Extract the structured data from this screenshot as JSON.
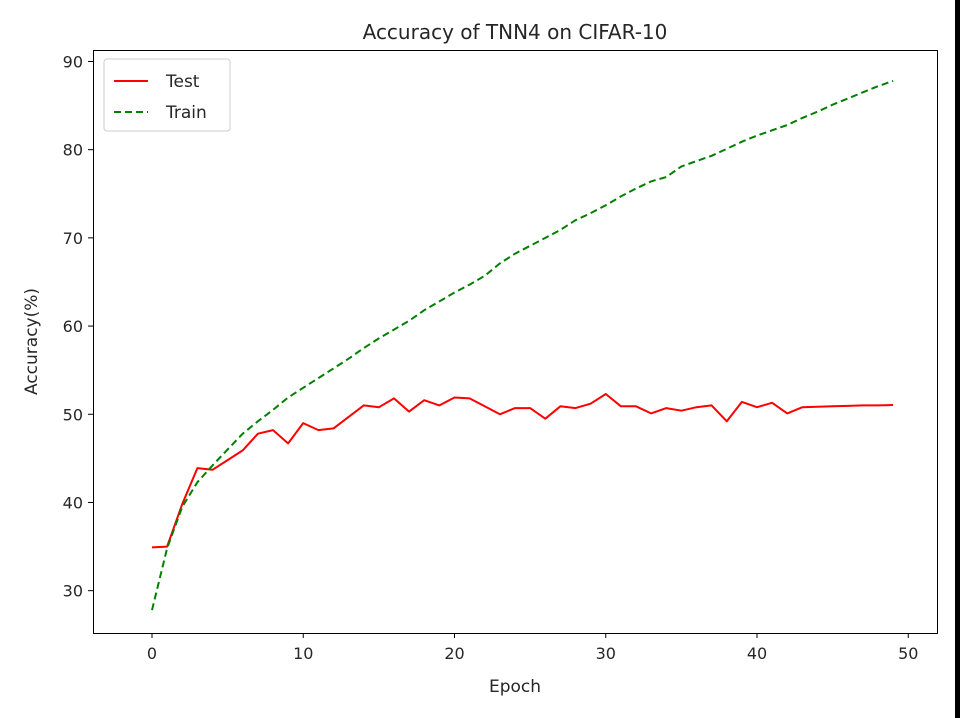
{
  "chart_data": {
    "type": "line",
    "title": "Accuracy of TNN4 on CIFAR-10",
    "xlabel": "Epoch",
    "ylabel": "Accuracy(%)",
    "xlim": [
      -3.9,
      51.9
    ],
    "ylim": [
      25.2,
      91.3
    ],
    "xticks": [
      0,
      10,
      20,
      30,
      40,
      50
    ],
    "yticks": [
      30,
      40,
      50,
      60,
      70,
      80,
      90
    ],
    "grid": false,
    "legend_position": "upper-left",
    "x": [
      0,
      1,
      2,
      3,
      4,
      5,
      6,
      7,
      8,
      9,
      10,
      11,
      12,
      13,
      14,
      15,
      16,
      17,
      18,
      19,
      20,
      21,
      22,
      23,
      24,
      25,
      26,
      27,
      28,
      29,
      30,
      31,
      32,
      33,
      34,
      35,
      36,
      37,
      38,
      39,
      40,
      41,
      42,
      43,
      44,
      45,
      46,
      47,
      48,
      49
    ],
    "series": [
      {
        "name": "Test",
        "color": "#ff0000",
        "style": "solid",
        "values": [
          34.9,
          35.0,
          39.8,
          43.9,
          43.7,
          44.8,
          45.9,
          47.8,
          48.2,
          46.7,
          49.0,
          48.2,
          48.4,
          49.7,
          51.0,
          50.8,
          51.8,
          50.3,
          51.6,
          51.0,
          51.9,
          51.8,
          50.9,
          50.0,
          50.7,
          50.7,
          49.5,
          50.9,
          50.7,
          51.2,
          52.3,
          50.9,
          50.9,
          50.1,
          50.7,
          50.4,
          50.8,
          51.0,
          49.2,
          51.4,
          50.8,
          51.3,
          50.1,
          50.8,
          50.85,
          50.9,
          50.95,
          51.0,
          51.0,
          51.05
        ]
      },
      {
        "name": "Train",
        "color": "#008000",
        "style": "dashed",
        "values": [
          27.8,
          34.8,
          39.5,
          42.3,
          44.2,
          46.0,
          47.8,
          49.2,
          50.5,
          51.9,
          53.0,
          54.1,
          55.2,
          56.3,
          57.5,
          58.6,
          59.6,
          60.6,
          61.8,
          62.8,
          63.8,
          64.7,
          65.7,
          67.1,
          68.2,
          69.1,
          70.0,
          70.9,
          72.0,
          72.8,
          73.7,
          74.7,
          75.6,
          76.4,
          76.9,
          78.1,
          78.7,
          79.3,
          80.1,
          80.9,
          81.6,
          82.2,
          82.8,
          83.6,
          84.3,
          85.1,
          85.8,
          86.5,
          87.2,
          87.8
        ]
      }
    ]
  }
}
